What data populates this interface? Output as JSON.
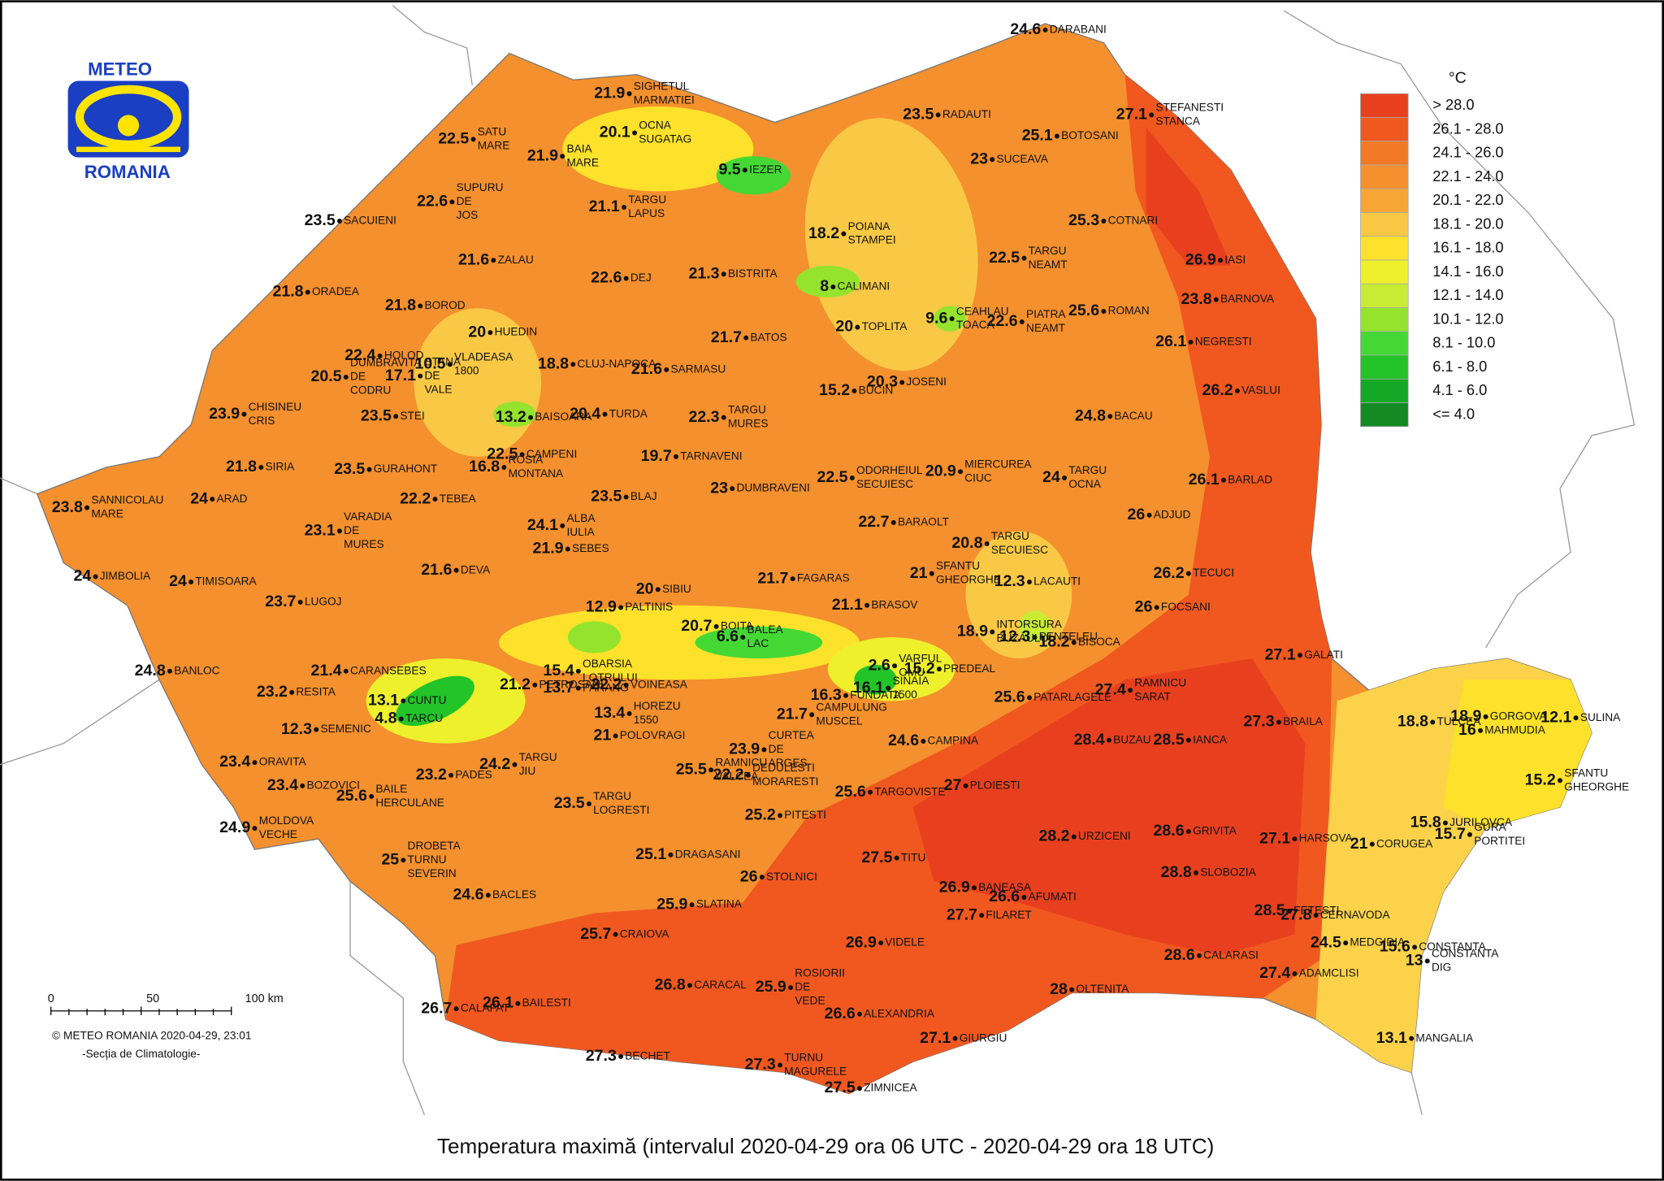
{
  "title": "Temperatura maximă (intervalul 2020-04-29 ora 06 UTC - 2020-04-29 ora 18 UTC)",
  "logo": {
    "top": "METEO",
    "bottom": "ROMANIA"
  },
  "legend": {
    "unit": "°C",
    "classes": [
      {
        "label": "> 28.0",
        "color": "#e8401f"
      },
      {
        "label": "26.1 - 28.0",
        "color": "#f0581f"
      },
      {
        "label": "24.1 - 26.0",
        "color": "#f27a27"
      },
      {
        "label": "22.1 - 24.0",
        "color": "#f4902d"
      },
      {
        "label": "20.1 - 22.0",
        "color": "#f7a635"
      },
      {
        "label": "18.1 - 20.0",
        "color": "#f9c845"
      },
      {
        "label": "16.1 - 18.0",
        "color": "#fde12a"
      },
      {
        "label": "14.1 - 16.0",
        "color": "#eef02c"
      },
      {
        "label": "12.1 - 14.0",
        "color": "#c8ec34"
      },
      {
        "label": "10.1 - 12.0",
        "color": "#95e32c"
      },
      {
        "label": "8.1 - 10.0",
        "color": "#45d835"
      },
      {
        "label": "6.1 - 8.0",
        "color": "#22c428"
      },
      {
        "label": "4.1 - 6.0",
        "color": "#13a825"
      },
      {
        "label": "<= 4.0",
        "color": "#138a22"
      }
    ]
  },
  "scale_bar": {
    "ticks": [
      "0",
      "50",
      "100 km"
    ]
  },
  "credit": [
    "© METEO ROMANIA 2020-04-29, 23:01",
    "-Secția de Climatologie-"
  ],
  "stations": [
    {
      "name": [
        "DARABANI"
      ],
      "value": 24.6
    },
    {
      "name": [
        "SIGHETUL",
        "MARMATIEI"
      ],
      "value": 21.9
    },
    {
      "name": [
        "OCNA",
        "SUGATAG"
      ],
      "value": 20.1
    },
    {
      "name": [
        "SATU",
        "MARE"
      ],
      "value": 22.5
    },
    {
      "name": [
        "BAIA",
        "MARE"
      ],
      "value": 21.9
    },
    {
      "name": [
        "IEZER"
      ],
      "value": 9.5
    },
    {
      "name": [
        "RADAUTI"
      ],
      "value": 23.5
    },
    {
      "name": [
        "BOTOSANI"
      ],
      "value": 25.1
    },
    {
      "name": [
        "STEFANESTI",
        "STANCA"
      ],
      "value": 27.1
    },
    {
      "name": [
        "SUCEAVA"
      ],
      "value": 23
    },
    {
      "name": [
        "SUPURU",
        "DE",
        "JOS"
      ],
      "value": 22.6
    },
    {
      "name": [
        "TARGU",
        "LAPUS"
      ],
      "value": 21.1
    },
    {
      "name": [
        "SACUIENI"
      ],
      "value": 23.5
    },
    {
      "name": [
        "POIANA",
        "STAMPEI"
      ],
      "value": 18.2
    },
    {
      "name": [
        "COTNARI"
      ],
      "value": 25.3
    },
    {
      "name": [
        "TARGU",
        "NEAMT"
      ],
      "value": 22.5
    },
    {
      "name": [
        "IASI"
      ],
      "value": 26.9
    },
    {
      "name": [
        "ZALAU"
      ],
      "value": 21.6
    },
    {
      "name": [
        "DEJ"
      ],
      "value": 22.6
    },
    {
      "name": [
        "BISTRITA"
      ],
      "value": 21.3
    },
    {
      "name": [
        "CALIMANI"
      ],
      "value": 8
    },
    {
      "name": [
        "ORADEA"
      ],
      "value": 21.8
    },
    {
      "name": [
        "BARNOVA"
      ],
      "value": 23.8
    },
    {
      "name": [
        "BOROD"
      ],
      "value": 21.8
    },
    {
      "name": [
        "CEAHLAU",
        "TOACA"
      ],
      "value": 9.6
    },
    {
      "name": [
        "PIATRA",
        "NEAMT"
      ],
      "value": 22.6
    },
    {
      "name": [
        "ROMAN"
      ],
      "value": 25.6
    },
    {
      "name": [
        "HUEDIN"
      ],
      "value": 20
    },
    {
      "name": [
        "TOPLITA"
      ],
      "value": 20
    },
    {
      "name": [
        "BATOS"
      ],
      "value": 21.7
    },
    {
      "name": [
        "NEGRESTI"
      ],
      "value": 26.1
    },
    {
      "name": [
        "VLADEASA",
        "1800"
      ],
      "value": 10.5
    },
    {
      "name": [
        "HOLOD"
      ],
      "value": 22.4
    },
    {
      "name": [
        "CLUJ-NAPOCA"
      ],
      "value": 18.8
    },
    {
      "name": [
        "DUMBRAVITA",
        "DE",
        "CODRU"
      ],
      "value": 20.5
    },
    {
      "name": [
        "STANA",
        "DE",
        "VALE"
      ],
      "value": 17.1
    },
    {
      "name": [
        "SARMASU"
      ],
      "value": 21.6
    },
    {
      "name": [
        "BUCIN"
      ],
      "value": 15.2
    },
    {
      "name": [
        "JOSENI"
      ],
      "value": 20.3
    },
    {
      "name": [
        "VASLUI"
      ],
      "value": 26.2
    },
    {
      "name": [
        "CHISINEU",
        "CRIS"
      ],
      "value": 23.9
    },
    {
      "name": [
        "STEI"
      ],
      "value": 23.5
    },
    {
      "name": [
        "BAISOARA"
      ],
      "value": 13.2
    },
    {
      "name": [
        "TURDA"
      ],
      "value": 20.4
    },
    {
      "name": [
        "TARGU",
        "MURES"
      ],
      "value": 22.3
    },
    {
      "name": [
        "BACAU"
      ],
      "value": 24.8
    },
    {
      "name": [
        "CAMPENI"
      ],
      "value": 22.5
    },
    {
      "name": [
        "ROSIA",
        "MONTANA"
      ],
      "value": 16.8
    },
    {
      "name": [
        "TARNAVENI"
      ],
      "value": 19.7
    },
    {
      "name": [
        "MIERCUREA",
        "CIUC"
      ],
      "value": 20.9
    },
    {
      "name": [
        "SIRIA"
      ],
      "value": 21.8
    },
    {
      "name": [
        "GURAHONT"
      ],
      "value": 23.5
    },
    {
      "name": [
        "TARGU",
        "OCNA"
      ],
      "value": 24
    },
    {
      "name": [
        "ODORHEIUL",
        "SECUIESC"
      ],
      "value": 22.5
    },
    {
      "name": [
        "BARLAD"
      ],
      "value": 26.1
    },
    {
      "name": [
        "SANNICOLAU",
        "MARE"
      ],
      "value": 23.8
    },
    {
      "name": [
        "ARAD"
      ],
      "value": 24
    },
    {
      "name": [
        "TEBEA"
      ],
      "value": 22.2
    },
    {
      "name": [
        "DUMBRAVENI"
      ],
      "value": 23
    },
    {
      "name": [
        "BLAJ"
      ],
      "value": 23.5
    },
    {
      "name": [
        "VARADIA",
        "DE",
        "MURES"
      ],
      "value": 23.1
    },
    {
      "name": [
        "ADJUD"
      ],
      "value": 26
    },
    {
      "name": [
        "ALBA",
        "IULIA"
      ],
      "value": 24.1
    },
    {
      "name": [
        "BARAOLT"
      ],
      "value": 22.7
    },
    {
      "name": [
        "SEBES"
      ],
      "value": 21.9
    },
    {
      "name": [
        "TARGU",
        "SECUIESC"
      ],
      "value": 20.8
    },
    {
      "name": [
        "SFANTU",
        "GHEORGHE"
      ],
      "value": 21
    },
    {
      "name": [
        "JIMBOLIA"
      ],
      "value": 24
    },
    {
      "name": [
        "TIMISOARA"
      ],
      "value": 24
    },
    {
      "name": [
        "DEVA"
      ],
      "value": 21.6
    },
    {
      "name": [
        "LACAUTI"
      ],
      "value": 12.3
    },
    {
      "name": [
        "TECUCI"
      ],
      "value": 26.2
    },
    {
      "name": [
        "SIBIU"
      ],
      "value": 20
    },
    {
      "name": [
        "FAGARAS"
      ],
      "value": 21.7
    },
    {
      "name": [
        "LUGOJ"
      ],
      "value": 23.7
    },
    {
      "name": [
        "BRASOV"
      ],
      "value": 21.1
    },
    {
      "name": [
        "FOCSANI"
      ],
      "value": 26
    },
    {
      "name": [
        "PALTINIS"
      ],
      "value": 12.9
    },
    {
      "name": [
        "BOITA"
      ],
      "value": 20.7
    },
    {
      "name": [
        "BALEA",
        "LAC"
      ],
      "value": 6.6
    },
    {
      "name": [
        "INTORSURA",
        "BUZAULUI"
      ],
      "value": 18.9
    },
    {
      "name": [
        "PENTELEU"
      ],
      "value": 12.3
    },
    {
      "name": [
        "BISOCA"
      ],
      "value": 18.2
    },
    {
      "name": [
        "BANLOC"
      ],
      "value": 24.8
    },
    {
      "name": [
        "CARANSEBES"
      ],
      "value": 21.4
    },
    {
      "name": [
        "OBARSIA",
        "LOTRULUI"
      ],
      "value": 15.4
    },
    {
      "name": [
        "VARFUL",
        "OMU"
      ],
      "value": 2.6
    },
    {
      "name": [
        "PREDEAL"
      ],
      "value": 15.2
    },
    {
      "name": [
        "RESITA"
      ],
      "value": 23.2
    },
    {
      "name": [
        "PETROSANI"
      ],
      "value": 21.2
    },
    {
      "name": [
        "PARANG"
      ],
      "value": 13.7
    },
    {
      "name": [
        "VOINEASA"
      ],
      "value": 22.2
    },
    {
      "name": [
        "CUNTU"
      ],
      "value": 13.1
    },
    {
      "name": [
        "TARCU"
      ],
      "value": 4.8
    },
    {
      "name": [
        "SEMENIC"
      ],
      "value": 12.3
    },
    {
      "name": [
        "HOREZU",
        "1550"
      ],
      "value": 13.4
    },
    {
      "name": [
        "POLOVRAGI"
      ],
      "value": 21
    },
    {
      "name": [
        "CAMPULUNG",
        "MUSCEL"
      ],
      "value": 21.7
    },
    {
      "name": [
        "CAMPINA"
      ],
      "value": 24.6
    },
    {
      "name": [
        "PATARLAGELE"
      ],
      "value": 25.6
    },
    {
      "name": [
        "RAMNICU",
        "SARAT"
      ],
      "value": 27.4
    },
    {
      "name": [
        "GALATI"
      ],
      "value": 27.1
    },
    {
      "name": [
        "BUZAU"
      ],
      "value": 28.4
    },
    {
      "name": [
        "IANCA"
      ],
      "value": 28.5
    },
    {
      "name": [
        "BRAILA"
      ],
      "value": 27.3
    },
    {
      "name": [
        "ORAVITA"
      ],
      "value": 23.4
    },
    {
      "name": [
        "PADES"
      ],
      "value": 23.2
    },
    {
      "name": [
        "TARGU",
        "JIU"
      ],
      "value": 24.2
    },
    {
      "name": [
        "BAILE",
        "HERCULANE"
      ],
      "value": 25.6
    },
    {
      "name": [
        "BOZOVICI"
      ],
      "value": 23.4
    },
    {
      "name": [
        "RAMNICU",
        "VALCEA"
      ],
      "value": 25.5
    },
    {
      "name": [
        "DEDULESTI",
        "MORARESTI"
      ],
      "value": 22.2
    },
    {
      "name": [
        "TARGU",
        "LOGRESTI"
      ],
      "value": 23.5
    },
    {
      "name": [
        "CURTEA",
        "DE",
        "ARGES"
      ],
      "value": 23.9
    },
    {
      "name": [
        "PITESTI"
      ],
      "value": 25.2
    },
    {
      "name": [
        "TARGOVISTE"
      ],
      "value": 25.6
    },
    {
      "name": [
        "PLOIESTI"
      ],
      "value": 27
    },
    {
      "name": [
        "MOLDOVA",
        "VECHE"
      ],
      "value": 24.9
    },
    {
      "name": [
        "URZICENI"
      ],
      "value": 28.2
    },
    {
      "name": [
        "GRIVITA"
      ],
      "value": 28.6
    },
    {
      "name": [
        "HARSOVA"
      ],
      "value": 27.1
    },
    {
      "name": [
        "CORUGEA"
      ],
      "value": 21
    },
    {
      "name": [
        "JURILOVCA"
      ],
      "value": 15.8
    },
    {
      "name": [
        "GURA",
        "PORTITEI"
      ],
      "value": 15.7
    },
    {
      "name": [
        "DROBETA",
        "TURNU",
        "SEVERIN"
      ],
      "value": 25
    },
    {
      "name": [
        "DRAGASANI"
      ],
      "value": 25.1
    },
    {
      "name": [
        "TITU"
      ],
      "value": 27.5
    },
    {
      "name": [
        "STOLNICI"
      ],
      "value": 26
    },
    {
      "name": [
        "SLOBOZIA"
      ],
      "value": 28.8
    },
    {
      "name": [
        "BACLES"
      ],
      "value": 24.6
    },
    {
      "name": [
        "BANEASA"
      ],
      "value": 26.9
    },
    {
      "name": [
        "AFUMATI"
      ],
      "value": 26.6
    },
    {
      "name": [
        "FILARET"
      ],
      "value": 27.7
    },
    {
      "name": [
        "SLATINA"
      ],
      "value": 25.9
    },
    {
      "name": [
        "FETESTI"
      ],
      "value": 28.5
    },
    {
      "name": [
        "CERNAVODA"
      ],
      "value": 27.8
    },
    {
      "name": [
        "CRAIOVA"
      ],
      "value": 25.7
    },
    {
      "name": [
        "VIDELE"
      ],
      "value": 26.9
    },
    {
      "name": [
        "MEDGIDIA"
      ],
      "value": 24.5
    },
    {
      "name": [
        "CONSTANTA"
      ],
      "value": 15.6
    },
    {
      "name": [
        "CONSTANTA",
        "DIG"
      ],
      "value": 13
    },
    {
      "name": [
        "CALARASI"
      ],
      "value": 28.6
    },
    {
      "name": [
        "ADAMCLISI"
      ],
      "value": 27.4
    },
    {
      "name": [
        "ROSIORII",
        "DE",
        "VEDE"
      ],
      "value": 25.9
    },
    {
      "name": [
        "CARACAL"
      ],
      "value": 26.8
    },
    {
      "name": [
        "OLTENITA"
      ],
      "value": 28
    },
    {
      "name": [
        "CALAFAT"
      ],
      "value": 26.7
    },
    {
      "name": [
        "BAILESTI"
      ],
      "value": 26.1
    },
    {
      "name": [
        "ALEXANDRIA"
      ],
      "value": 26.6
    },
    {
      "name": [
        "GIURGIU"
      ],
      "value": 27.1
    },
    {
      "name": [
        "MANGALIA"
      ],
      "value": 13.1
    },
    {
      "name": [
        "BECHET"
      ],
      "value": 27.3
    },
    {
      "name": [
        "TURNU",
        "MAGURELE"
      ],
      "value": 27.3
    },
    {
      "name": [
        "ZIMNICEA"
      ],
      "value": 27.5
    },
    {
      "name": [
        "TULCEA"
      ],
      "value": 18.8
    },
    {
      "name": [
        "GORGOVA"
      ],
      "value": 18.9
    },
    {
      "name": [
        "MAHMUDIA"
      ],
      "value": 16
    },
    {
      "name": [
        "SULINA"
      ],
      "value": 12.1
    },
    {
      "name": [
        "SFANTU",
        "GHEORGHE"
      ],
      "value": 15.2
    },
    {
      "name": [
        "FUNDATA"
      ],
      "value": 16.3
    },
    {
      "name": [
        "SINAIA",
        "1500"
      ],
      "value": 16.1
    }
  ]
}
